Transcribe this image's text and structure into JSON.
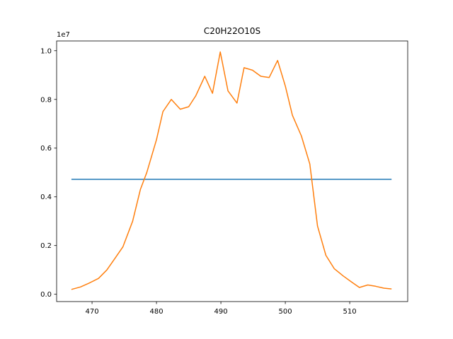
{
  "chart_data": {
    "type": "line",
    "title": "C20H22O10S",
    "xlabel": "",
    "ylabel": "",
    "y_offset_label": "1e7",
    "xlim": [
      464.5,
      519
    ],
    "ylim": [
      -0.03,
      1.04
    ],
    "x_ticks": [
      470,
      480,
      490,
      500,
      510
    ],
    "y_ticks": [
      0.0,
      0.2,
      0.4,
      0.6,
      0.8,
      1.0
    ],
    "y_tick_labels": [
      "0.0",
      "0.2",
      "0.4",
      "0.6",
      "0.8",
      "1.0"
    ],
    "grid": false,
    "legend": "none",
    "series": [
      {
        "color": "#1f77b4",
        "x": [
          466.8,
          516.5
        ],
        "y": [
          0.472,
          0.472
        ]
      },
      {
        "color": "#ff7f0e",
        "x": [
          466.8,
          468.2,
          469.5,
          471.0,
          472.3,
          473.5,
          474.8,
          476.3,
          477.5,
          478.5,
          480.0,
          481.0,
          482.3,
          483.7,
          485.0,
          486.1,
          487.5,
          488.7,
          489.9,
          491.1,
          492.5,
          493.6,
          494.9,
          496.2,
          497.5,
          498.8,
          500.0,
          501.1,
          502.5,
          503.8,
          505.0,
          506.3,
          507.6,
          509.0,
          510.3,
          511.5,
          512.8,
          514.0,
          515.3,
          516.5
        ],
        "y": [
          0.02,
          0.03,
          0.045,
          0.065,
          0.1,
          0.145,
          0.195,
          0.3,
          0.43,
          0.5,
          0.635,
          0.75,
          0.8,
          0.76,
          0.77,
          0.815,
          0.895,
          0.825,
          0.995,
          0.835,
          0.785,
          0.93,
          0.92,
          0.895,
          0.89,
          0.96,
          0.855,
          0.735,
          0.65,
          0.535,
          0.28,
          0.16,
          0.105,
          0.075,
          0.05,
          0.028,
          0.038,
          0.033,
          0.025,
          0.022
        ]
      }
    ]
  }
}
